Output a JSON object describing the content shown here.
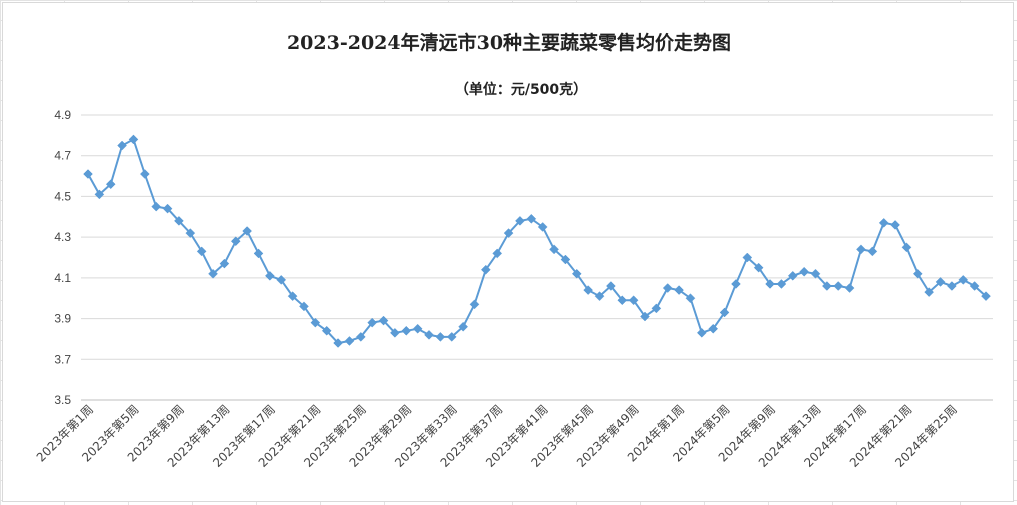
{
  "chart_data": {
    "type": "line",
    "title": "2023-2024年清远市30种主要蔬菜零售均价走势图",
    "subtitle": "（单位：元/500克）",
    "xlabel": "",
    "ylabel": "",
    "ylim": [
      3.5,
      4.9
    ],
    "yticks": [
      "3.5",
      "3.7",
      "3.9",
      "4.1",
      "4.3",
      "4.5",
      "4.7",
      "4.9"
    ],
    "grid": true,
    "legend": "none",
    "line_color": "#5b9bd5",
    "marker": "diamond",
    "x_tick_labels": [
      "2023年第1周",
      "2023年第5周",
      "2023年第9周",
      "2023年第13周",
      "2023年第17周",
      "2023年第21周",
      "2023年第25周",
      "2023年第29周",
      "2023年第33周",
      "2023年第37周",
      "2023年第41周",
      "2023年第45周",
      "2023年第49周",
      "2024年第1周",
      "2024年第5周",
      "2024年第9周",
      "2024年第13周",
      "2024年第17周",
      "2024年第21周",
      "2024年第25周"
    ],
    "series": [
      {
        "values": [
          4.61,
          4.51,
          4.56,
          4.75,
          4.78,
          4.61,
          4.45,
          4.44,
          4.38,
          4.32,
          4.23,
          4.12,
          4.17,
          4.28,
          4.33,
          4.22,
          4.11,
          4.09,
          4.01,
          3.96,
          3.88,
          3.84,
          3.78,
          3.79,
          3.81,
          3.88,
          3.89,
          3.83,
          3.84,
          3.85,
          3.82,
          3.81,
          3.81,
          3.86,
          3.97,
          4.14,
          4.22,
          4.32,
          4.38,
          4.39,
          4.35,
          4.24,
          4.19,
          4.12,
          4.04,
          4.01,
          4.06,
          3.99,
          3.99,
          3.91,
          3.95,
          4.05,
          4.04,
          4.0,
          3.83,
          3.85,
          3.93,
          4.07,
          4.2,
          4.15,
          4.07,
          4.07,
          4.11,
          4.13,
          4.12,
          4.06,
          4.06,
          4.05,
          4.24,
          4.23,
          4.37,
          4.36,
          4.25,
          4.12,
          4.03,
          4.08,
          4.06,
          4.09,
          4.06,
          4.01
        ]
      }
    ]
  }
}
